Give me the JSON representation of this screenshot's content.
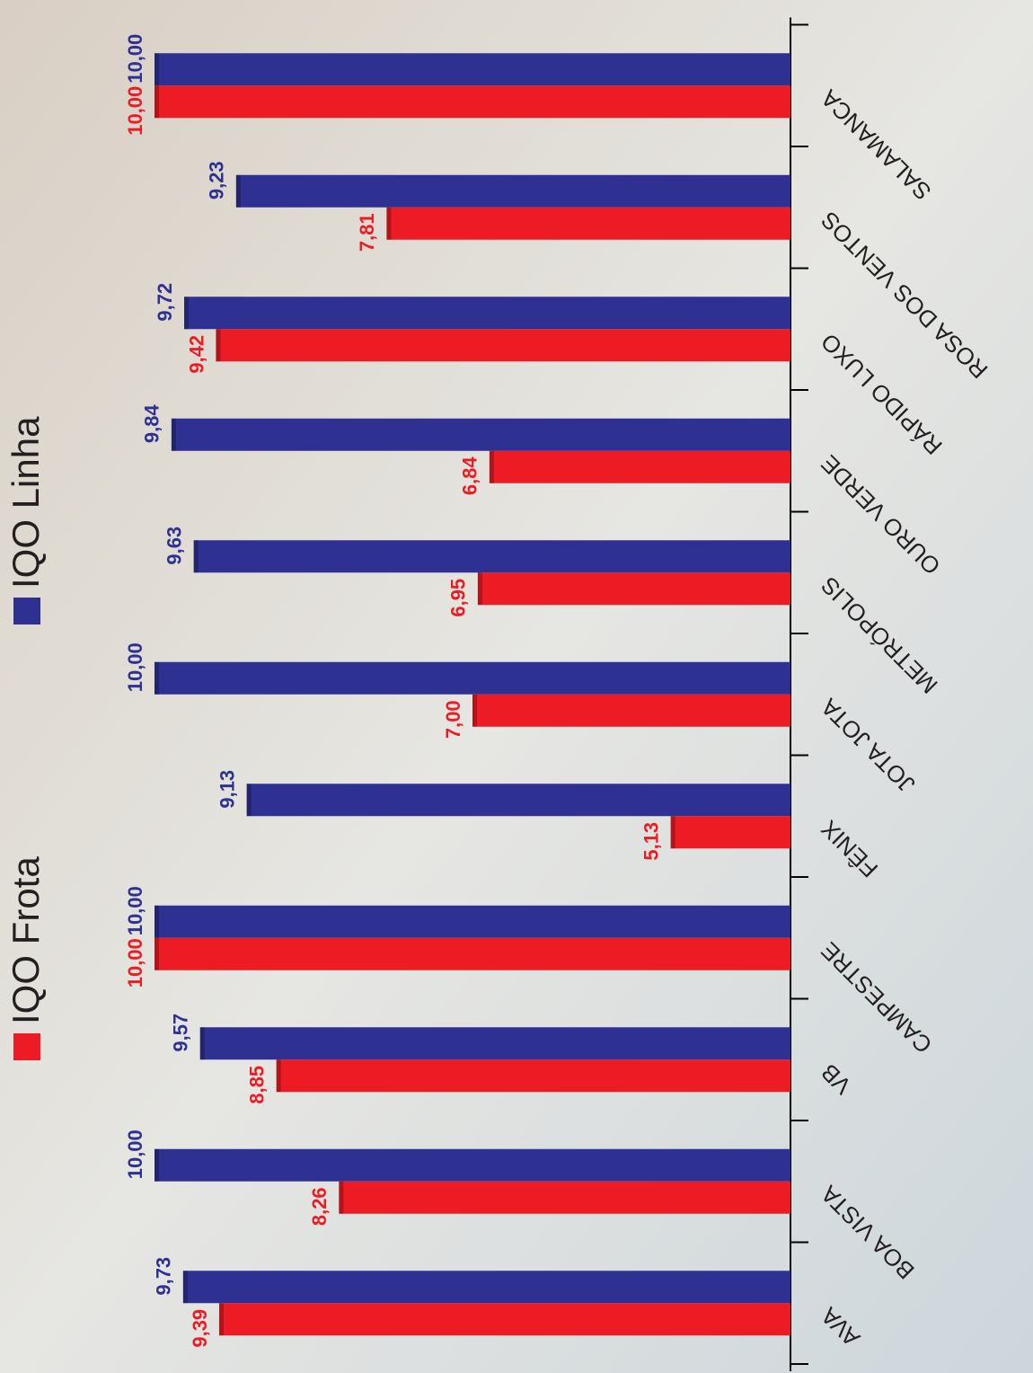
{
  "chart_data": {
    "type": "bar",
    "orientation": "horizontal",
    "categories": [
      "AVA",
      "BOA VISTA",
      "VB",
      "CAMPESTRE",
      "FÊNIX",
      "JOTA JOTA",
      "METRÓPOLIS",
      "OURO VERDE",
      "RÁPIDO LUXO",
      "ROSA DOS VENTOS",
      "SALAMANCA"
    ],
    "series": [
      {
        "name": "IQO Frota",
        "color": "#ed1c24",
        "values": [
          9.39,
          8.26,
          8.85,
          10.0,
          5.13,
          7.0,
          6.95,
          6.84,
          9.42,
          7.81,
          10.0
        ],
        "value_labels": [
          "9,39",
          "8,26",
          "8,85",
          "10,00",
          "5,13",
          "7,00",
          "6,95",
          "6,84",
          "9,42",
          "7,81",
          "10,00"
        ]
      },
      {
        "name": "IQO Linha",
        "color": "#2e3192",
        "values": [
          9.73,
          10.0,
          9.57,
          10.0,
          9.13,
          10.0,
          9.63,
          9.84,
          9.72,
          9.23,
          10.0
        ],
        "value_labels": [
          "9,73",
          "10,00",
          "9,57",
          "10,00",
          "9,13",
          "10,00",
          "9,63",
          "9,84",
          "9,72",
          "9,23",
          "10,00"
        ]
      }
    ],
    "ylim": [
      4,
      10
    ]
  }
}
